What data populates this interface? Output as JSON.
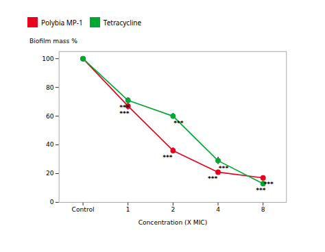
{
  "chart_data": {
    "type": "line",
    "xlabel": "Concentration (X MIC)",
    "ylabel": "Biofilm mass %",
    "categories": [
      "Control",
      "1",
      "2",
      "4",
      "8"
    ],
    "series": [
      {
        "name": "Polybia MP-1",
        "color": "#e8001c",
        "values": [
          100,
          67,
          36,
          21,
          17
        ],
        "errors": [
          0,
          2.5,
          2.0,
          1.5,
          1.5
        ]
      },
      {
        "name": "Tetracycline",
        "color": "#00a832",
        "values": [
          100,
          71,
          60,
          29,
          13
        ],
        "errors": [
          0,
          2.0,
          2.0,
          2.5,
          2.0
        ]
      }
    ],
    "marker": "circle",
    "ylim": [
      0,
      105
    ],
    "yticks": [
      0,
      20,
      40,
      60,
      80,
      100
    ],
    "legend": "top",
    "annotations": [
      {
        "text": "***",
        "category": "1",
        "series": "Tetracycline"
      },
      {
        "text": "***",
        "category": "1",
        "series": "Polybia MP-1"
      },
      {
        "text": "***",
        "category": "2",
        "series": "Tetracycline"
      },
      {
        "text": "***",
        "category": "2",
        "series": "Polybia MP-1"
      },
      {
        "text": "***",
        "category": "4",
        "series": "Tetracycline"
      },
      {
        "text": "***",
        "category": "4",
        "series": "Polybia MP-1"
      },
      {
        "text": "***",
        "category": "8",
        "series": "Polybia MP-1"
      },
      {
        "text": "***",
        "category": "8",
        "series": "Tetracycline"
      }
    ]
  }
}
